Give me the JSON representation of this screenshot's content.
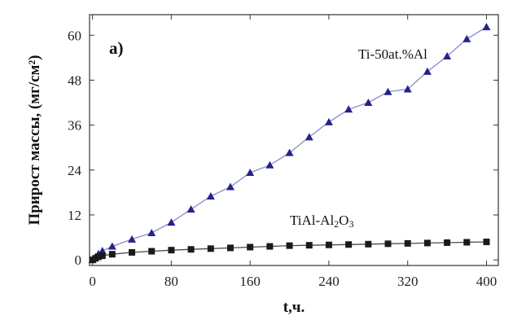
{
  "chart_data": {
    "type": "line",
    "panel_label": "a)",
    "xlabel": "t,ч.",
    "ylabel": "Прирост массы, (мг/см²)",
    "xlim": [
      -3,
      412
    ],
    "ylim": [
      -1.5,
      65.5
    ],
    "x_ticks": [
      0,
      80,
      160,
      240,
      320,
      400
    ],
    "y_ticks": [
      0,
      12,
      24,
      36,
      48,
      60
    ],
    "series": [
      {
        "name": "Ti-50at.%Al",
        "label_parts": [
          "Ti-50at.%Al"
        ],
        "color": "#23238a",
        "line_color": "#8a8ac8",
        "marker": "triangle",
        "x": [
          0,
          3,
          6,
          10,
          20,
          40,
          60,
          80,
          100,
          120,
          140,
          160,
          180,
          200,
          220,
          240,
          260,
          280,
          300,
          320,
          340,
          360,
          380,
          400
        ],
        "y": [
          0.0,
          0.8,
          1.6,
          2.4,
          3.6,
          5.5,
          7.2,
          10.0,
          13.5,
          17.0,
          19.5,
          23.3,
          25.3,
          28.6,
          32.8,
          36.8,
          40.2,
          42.0,
          44.9,
          45.6,
          50.3,
          54.4,
          59.0,
          62.2
        ]
      },
      {
        "name": "TiAl-Al2O3",
        "label_parts": [
          "TiAl-Al",
          "2",
          "O",
          "3"
        ],
        "color": "#1a1a1a",
        "line_color": "#4a4a4a",
        "marker": "square",
        "x": [
          0,
          3,
          6,
          10,
          20,
          40,
          60,
          80,
          100,
          120,
          140,
          160,
          180,
          200,
          220,
          240,
          260,
          280,
          300,
          320,
          340,
          360,
          380,
          400
        ],
        "y": [
          0.0,
          0.4,
          0.8,
          1.1,
          1.5,
          2.0,
          2.3,
          2.6,
          2.8,
          3.0,
          3.2,
          3.4,
          3.6,
          3.8,
          3.9,
          4.0,
          4.1,
          4.2,
          4.3,
          4.4,
          4.5,
          4.6,
          4.7,
          4.8
        ]
      }
    ]
  }
}
